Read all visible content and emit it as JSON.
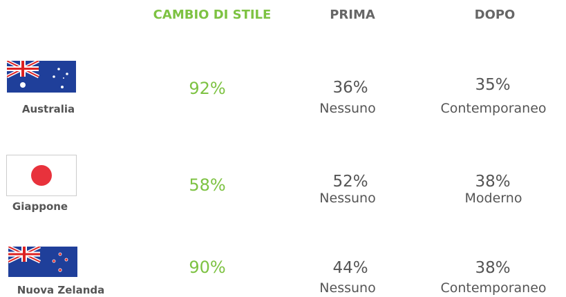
{
  "header": [
    "CAMBIO DI STILE",
    "PRIMA",
    "DOPO"
  ],
  "rows": [
    {
      "country": "Australia",
      "change": "92%",
      "before": {
        "percent": "36%",
        "style": "Nessuno"
      },
      "after": {
        "percent": "35%",
        "style": "Contemporaneo"
      }
    },
    {
      "country": "Giappone",
      "change": "58%",
      "before": {
        "percent": "52%",
        "style": "Nessuno"
      },
      "after": {
        "percent": "38%",
        "style": "Moderno"
      }
    },
    {
      "country": "Nuova Zelanda",
      "change": "90%",
      "before": {
        "percent": "44%",
        "style": "Nessuno"
      },
      "after": {
        "percent": "38%",
        "style": "Contemporaneo"
      }
    }
  ]
}
